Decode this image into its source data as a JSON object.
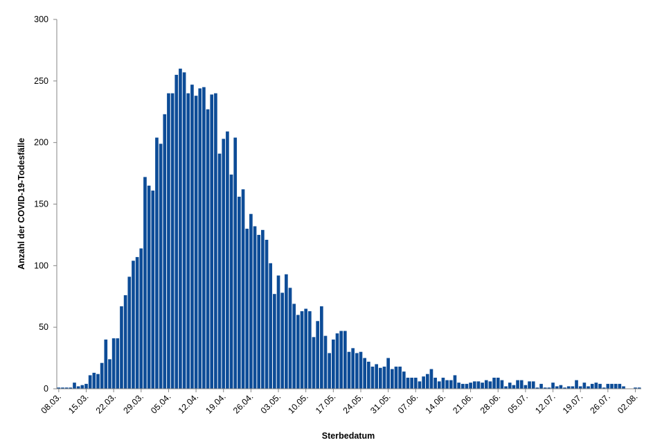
{
  "chart_data": {
    "type": "bar",
    "title": "",
    "xlabel": "Sterbedatum",
    "ylabel": "Anzahl der COVID-19-Todesfälle",
    "ylim": [
      0,
      300
    ],
    "yticks": [
      0,
      50,
      100,
      150,
      200,
      250,
      300
    ],
    "xtick_labels": [
      "08.03.",
      "15.03.",
      "22.03.",
      "29.03.",
      "05.04.",
      "12.04.",
      "19.04.",
      "26.04.",
      "03.05.",
      "10.05.",
      "17.05.",
      "24.05.",
      "31.05.",
      "07.06.",
      "14.06.",
      "21.06.",
      "28.06.",
      "05.07.",
      "12.07.",
      "19.07.",
      "26.07.",
      "02.08."
    ],
    "grid": false,
    "bar_color": "#0d4c97",
    "values": [
      1,
      1,
      1,
      1,
      5,
      2,
      3,
      4,
      11,
      13,
      12,
      21,
      40,
      24,
      41,
      41,
      67,
      76,
      91,
      104,
      107,
      114,
      172,
      165,
      161,
      204,
      199,
      223,
      240,
      240,
      255,
      260,
      257,
      240,
      247,
      238,
      244,
      245,
      227,
      239,
      240,
      191,
      203,
      209,
      174,
      204,
      156,
      162,
      130,
      142,
      132,
      125,
      129,
      121,
      102,
      77,
      92,
      78,
      93,
      82,
      69,
      60,
      63,
      65,
      63,
      42,
      55,
      67,
      43,
      29,
      40,
      45,
      47,
      47,
      30,
      33,
      29,
      30,
      25,
      22,
      18,
      20,
      17,
      18,
      25,
      16,
      18,
      18,
      14,
      9,
      9,
      9,
      6,
      10,
      12,
      16,
      9,
      6,
      9,
      7,
      7,
      11,
      5,
      4,
      4,
      5,
      6,
      6,
      5,
      7,
      6,
      9,
      9,
      7,
      2,
      5,
      3,
      7,
      7,
      3,
      6,
      6,
      1,
      4,
      1,
      1,
      5,
      2,
      3,
      1,
      2,
      2,
      7,
      2,
      5,
      2,
      4,
      5,
      4,
      1,
      4,
      4,
      4,
      4,
      2,
      0,
      0,
      1,
      1
    ]
  }
}
